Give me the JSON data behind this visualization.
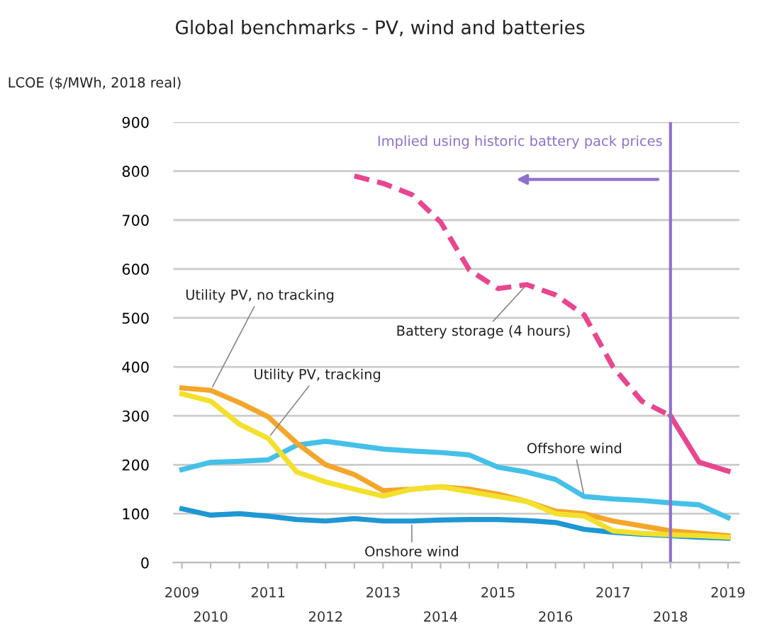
{
  "chart_data": {
    "type": "line",
    "title": "Global benchmarks - PV, wind and batteries",
    "ylabel": "LCOE ($/MWh, 2018 real)",
    "categories": [
      "2009",
      "2010",
      null,
      "2011",
      null,
      "2012",
      null,
      "2013",
      null,
      "2014",
      null,
      "2015",
      null,
      "2016",
      null,
      "2017",
      null,
      "2018",
      null,
      "2019"
    ],
    "ylim": [
      0,
      900
    ],
    "yticks": [
      0,
      100,
      200,
      300,
      400,
      500,
      600,
      700,
      800,
      900
    ],
    "grid": "y",
    "marker": "none",
    "series": [
      {
        "name": "Onshore wind",
        "color": "#1f97d4",
        "values": [
          110,
          97,
          100,
          95,
          88,
          85,
          90,
          85,
          85,
          87,
          88,
          88,
          86,
          82,
          68,
          62,
          58,
          55,
          52,
          50
        ]
      },
      {
        "name": "Offshore wind",
        "color": "#45c0e8",
        "values": [
          190,
          205,
          207,
          210,
          240,
          248,
          240,
          232,
          228,
          225,
          220,
          195,
          185,
          170,
          135,
          130,
          127,
          122,
          118,
          92
        ]
      },
      {
        "name": "Utility PV, no tracking",
        "color": "#f4a62a",
        "values": [
          357,
          352,
          327,
          298,
          244,
          200,
          180,
          147,
          150,
          155,
          150,
          140,
          125,
          105,
          100,
          85,
          75,
          65,
          60,
          55
        ]
      },
      {
        "name": "Utility PV, tracking",
        "color": "#f3e02c",
        "values": [
          345,
          330,
          283,
          254,
          185,
          165,
          150,
          136,
          150,
          155,
          145,
          135,
          125,
          100,
          95,
          65,
          60,
          57,
          55,
          52
        ]
      },
      {
        "name": "Battery storage (4 hours)",
        "color": "#e8468f",
        "line_style": "dashed",
        "values": [
          null,
          null,
          null,
          null,
          null,
          null,
          790,
          775,
          752,
          696,
          598,
          560,
          568,
          547,
          506,
          400,
          330,
          300,
          null,
          null
        ]
      },
      {
        "color": "#e8468f",
        "line_style": "solid",
        "values": [
          null,
          null,
          null,
          null,
          null,
          null,
          null,
          null,
          null,
          null,
          null,
          null,
          null,
          null,
          null,
          null,
          null,
          300,
          205,
          187
        ]
      }
    ],
    "ref_lines": [
      {
        "axis": "x",
        "value": "2018",
        "label": "Implied using historic battery pack prices",
        "color": "#8e6fce",
        "line_style": "solid"
      }
    ]
  }
}
